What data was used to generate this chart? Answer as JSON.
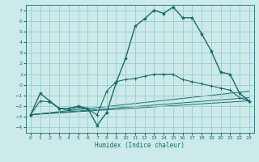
{
  "xlabel": "Humidex (Indice chaleur)",
  "xlim": [
    -0.5,
    23.5
  ],
  "ylim": [
    -4.5,
    7.5
  ],
  "yticks": [
    -4,
    -3,
    -2,
    -1,
    0,
    1,
    2,
    3,
    4,
    5,
    6,
    7
  ],
  "xticks": [
    0,
    1,
    2,
    3,
    4,
    5,
    6,
    7,
    8,
    9,
    10,
    11,
    12,
    13,
    14,
    15,
    16,
    17,
    18,
    19,
    20,
    21,
    22,
    23
  ],
  "bg_color": "#cceaea",
  "grid_color": "#99cccc",
  "line_color": "#1a6b6b",
  "series_main": {
    "x": [
      0,
      1,
      2,
      3,
      4,
      5,
      6,
      7,
      8,
      9,
      10,
      11,
      12,
      13,
      14,
      15,
      16,
      17,
      18,
      19,
      20,
      21,
      22,
      23
    ],
    "y": [
      -2.8,
      -0.8,
      -1.5,
      -2.2,
      -2.2,
      -2.0,
      -2.2,
      -3.8,
      -2.6,
      0.2,
      2.5,
      5.5,
      6.2,
      7.0,
      6.7,
      7.3,
      6.3,
      6.3,
      4.8,
      3.2,
      1.2,
      1.0,
      -0.8,
      -1.5
    ]
  },
  "series_secondary": {
    "x": [
      0,
      1,
      2,
      3,
      4,
      5,
      6,
      7,
      8,
      9,
      10,
      11,
      12,
      13,
      14,
      15,
      16,
      17,
      18,
      19,
      20,
      21,
      22,
      23
    ],
    "y": [
      -2.8,
      -1.5,
      -1.6,
      -2.2,
      -2.4,
      -2.1,
      -2.3,
      -2.8,
      -0.6,
      0.3,
      0.5,
      0.6,
      0.8,
      1.0,
      1.0,
      1.0,
      0.5,
      0.3,
      0.1,
      -0.1,
      -0.3,
      -0.5,
      -1.2,
      -1.5
    ],
    "marker_positions": [
      0,
      1,
      2,
      3,
      4,
      5,
      6,
      7,
      8,
      9,
      10,
      11,
      12,
      13,
      14,
      15,
      16,
      17,
      18,
      19,
      20,
      21,
      22,
      23
    ]
  },
  "trend_lines": [
    {
      "x": [
        0,
        23
      ],
      "y": [
        -2.8,
        -1.5
      ]
    },
    {
      "x": [
        0,
        23
      ],
      "y": [
        -2.8,
        -1.2
      ]
    },
    {
      "x": [
        0,
        23
      ],
      "y": [
        -2.8,
        -0.6
      ]
    }
  ]
}
